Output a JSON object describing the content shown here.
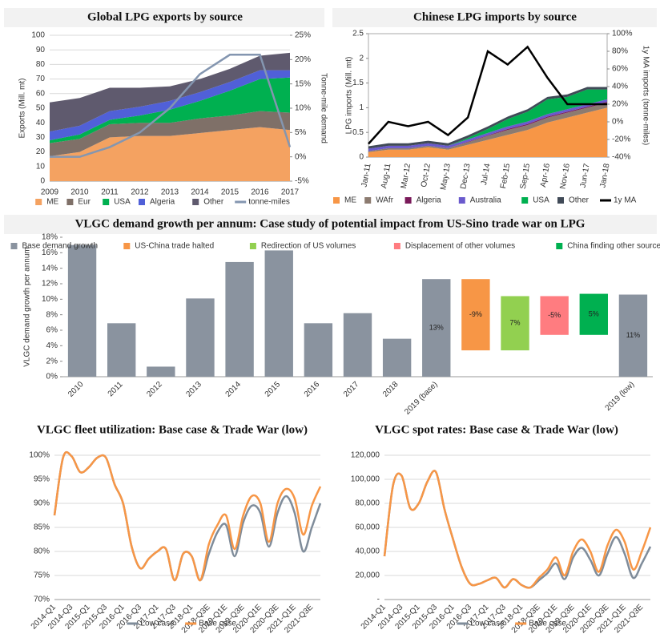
{
  "chart_data": [
    {
      "type": "area",
      "title": "Global LPG exports by source",
      "ylabel": "Exports (Mill. mt)",
      "y2label": "Tonne-mile demand",
      "categories": [
        "2009",
        "2010",
        "2011",
        "2012",
        "2013",
        "2014",
        "2015",
        "2016",
        "2017"
      ],
      "series": [
        {
          "name": "ME",
          "color": "#f4a261",
          "values": [
            17,
            20,
            30,
            31,
            31,
            33,
            35,
            37,
            35
          ]
        },
        {
          "name": "Eur",
          "color": "#7f7068",
          "values": [
            9,
            9,
            9,
            9,
            9,
            10,
            10,
            11,
            12
          ]
        },
        {
          "name": "USA",
          "color": "#00b050",
          "values": [
            2,
            3,
            3,
            5,
            9,
            12,
            17,
            22,
            24
          ]
        },
        {
          "name": "Algeria",
          "color": "#5060d8",
          "values": [
            6,
            6,
            6,
            6,
            6,
            6,
            6,
            6,
            5
          ]
        },
        {
          "name": "Other",
          "color": "#5f5a6e",
          "values": [
            20,
            19,
            16,
            13,
            10,
            9,
            9,
            10,
            12
          ]
        },
        {
          "name": "tonne-miles",
          "color": "#8496b0",
          "axis": "y2",
          "values": [
            0,
            0,
            2,
            5,
            10,
            17,
            21,
            21,
            2
          ]
        }
      ],
      "ylim": [
        0,
        100
      ],
      "yticks": [
        0,
        10,
        20,
        30,
        40,
        50,
        60,
        70,
        80,
        90,
        100
      ],
      "y2lim": [
        -5,
        25
      ],
      "y2ticks": [
        {
          "value": -5,
          "label": "-5%"
        },
        {
          "value": 0,
          "label": "0%"
        },
        {
          "value": 5,
          "label": "5%"
        },
        {
          "value": 10,
          "label": "10%"
        },
        {
          "value": 15,
          "label": "15%"
        },
        {
          "value": 20,
          "label": "20%"
        },
        {
          "value": 25,
          "label": "25%"
        }
      ],
      "grid": true,
      "legend": "bottom"
    },
    {
      "type": "area",
      "title": "Chinese LPG imports by source",
      "ylabel": "LPG imports (Mill. mt)",
      "y2label": "1y MA imports (tonne-miles)",
      "categories": [
        "Jan-11",
        "Aug-11",
        "Mar-12",
        "Oct-12",
        "May-13",
        "Dec-13",
        "Jul-14",
        "Feb-15",
        "Sep-15",
        "Apr-16",
        "Nov-16",
        "Jun-17",
        "Jan-18"
      ],
      "series": [
        {
          "name": "ME",
          "color": "#f79646",
          "values": [
            0.1,
            0.15,
            0.15,
            0.2,
            0.15,
            0.25,
            0.35,
            0.45,
            0.55,
            0.7,
            0.8,
            0.9,
            1.0
          ]
        },
        {
          "name": "WAfr",
          "color": "#8c7b70",
          "values": [
            0.02,
            0.03,
            0.03,
            0.03,
            0.03,
            0.05,
            0.08,
            0.1,
            0.1,
            0.1,
            0.1,
            0.1,
            0.1
          ]
        },
        {
          "name": "Algeria",
          "color": "#7a1a5a",
          "values": [
            0,
            0,
            0,
            0,
            0,
            0.01,
            0.01,
            0.02,
            0.02,
            0.02,
            0.02,
            0.02,
            0.02
          ]
        },
        {
          "name": "Australia",
          "color": "#6a5acd",
          "values": [
            0.05,
            0.05,
            0.05,
            0.05,
            0.05,
            0.05,
            0.05,
            0.05,
            0.05,
            0.05,
            0.05,
            0.05,
            0.05
          ]
        },
        {
          "name": "USA",
          "color": "#00b050",
          "values": [
            0,
            0,
            0,
            0,
            0,
            0.03,
            0.08,
            0.15,
            0.2,
            0.3,
            0.25,
            0.3,
            0.2
          ]
        },
        {
          "name": "Other",
          "color": "#404a57",
          "values": [
            0.05,
            0.05,
            0.05,
            0.05,
            0.05,
            0.05,
            0.05,
            0.05,
            0.05,
            0.05,
            0.05,
            0.05,
            0.05
          ]
        },
        {
          "name": "1y MA",
          "color": "#000000",
          "axis": "y2",
          "values": [
            -25,
            0,
            -5,
            0,
            -15,
            5,
            80,
            65,
            85,
            50,
            20,
            20,
            20
          ]
        }
      ],
      "ylim": [
        0,
        2.5
      ],
      "yticks": [
        0,
        0.5,
        1,
        1.5,
        2,
        2.5
      ],
      "y2lim": [
        -40,
        100
      ],
      "y2ticks": [
        {
          "value": -40,
          "label": "-40%"
        },
        {
          "value": -20,
          "label": "-20%"
        },
        {
          "value": 0,
          "label": "0%"
        },
        {
          "value": 20,
          "label": "20%"
        },
        {
          "value": 40,
          "label": "40%"
        },
        {
          "value": 60,
          "label": "60%"
        },
        {
          "value": 80,
          "label": "80%"
        },
        {
          "value": 100,
          "label": "100%"
        }
      ],
      "grid": false,
      "legend": "bottom"
    },
    {
      "type": "waterfall",
      "title": "VLGC demand growth per annum: Case study of potential impact from US-Sino trade war on LPG",
      "ylabel": "VLGC demand growth per annum",
      "categories": [
        "2010",
        "2011",
        "2012",
        "2013",
        "2014",
        "2015",
        "2016",
        "2017",
        "2018",
        "2019 (base)",
        null,
        null,
        null,
        null,
        "2019 (low)"
      ],
      "series": [
        {
          "name": "Base demand growth",
          "color": "#8a939f",
          "values": [
            17,
            6.9,
            1.3,
            10.1,
            14.8,
            16.3,
            6.9,
            8.2,
            4.9,
            12.6,
            null,
            null,
            null,
            null,
            10.6
          ],
          "value_labels": [
            null,
            null,
            null,
            null,
            null,
            null,
            null,
            null,
            null,
            "13%",
            null,
            null,
            null,
            null,
            "11%"
          ]
        },
        {
          "name": "US-China trade halted",
          "color": "#f79646",
          "values": [
            null,
            null,
            null,
            null,
            null,
            null,
            null,
            null,
            null,
            null,
            -9.2,
            null,
            null,
            null,
            null
          ],
          "value_labels": [
            null,
            null,
            null,
            null,
            null,
            null,
            null,
            null,
            null,
            null,
            "-9%",
            null,
            null,
            null,
            null
          ]
        },
        {
          "name": "Redirection of US volumes",
          "color": "#92d050",
          "values": [
            null,
            null,
            null,
            null,
            null,
            null,
            null,
            null,
            null,
            null,
            null,
            7,
            null,
            null,
            null
          ],
          "value_labels": [
            null,
            null,
            null,
            null,
            null,
            null,
            null,
            null,
            null,
            null,
            null,
            "7%",
            null,
            null,
            null
          ]
        },
        {
          "name": "Displacement of other volumes",
          "color": "#ff7c80",
          "values": [
            null,
            null,
            null,
            null,
            null,
            null,
            null,
            null,
            null,
            null,
            null,
            null,
            -5,
            null,
            null
          ],
          "value_labels": [
            null,
            null,
            null,
            null,
            null,
            null,
            null,
            null,
            null,
            null,
            null,
            null,
            "-5%",
            null,
            null
          ]
        },
        {
          "name": "China finding other sources",
          "color": "#00b050",
          "values": [
            null,
            null,
            null,
            null,
            null,
            null,
            null,
            null,
            null,
            null,
            null,
            null,
            null,
            5.3,
            null
          ],
          "value_labels": [
            null,
            null,
            null,
            null,
            null,
            null,
            null,
            null,
            null,
            null,
            null,
            null,
            null,
            "5%",
            null
          ]
        }
      ],
      "ylim": [
        0,
        18
      ],
      "yticks": [
        {
          "value": 0,
          "label": "0%"
        },
        {
          "value": 2,
          "label": "2%"
        },
        {
          "value": 4,
          "label": "4%"
        },
        {
          "value": 6,
          "label": "6%"
        },
        {
          "value": 8,
          "label": "8%"
        },
        {
          "value": 10,
          "label": "10%"
        },
        {
          "value": 12,
          "label": "12%"
        },
        {
          "value": 14,
          "label": "14%"
        },
        {
          "value": 16,
          "label": "16%"
        },
        {
          "value": 18,
          "label": "18%"
        }
      ],
      "grid": false,
      "legend": "top"
    },
    {
      "type": "line",
      "title": "VLGC fleet utilization: Base case & Trade War (low)",
      "categories": [
        "2014-Q1",
        null,
        "2014-Q3",
        null,
        "2015-Q1",
        null,
        "2015-Q3",
        null,
        "2016-Q1",
        null,
        "2016-Q3",
        null,
        "2017-Q1",
        null,
        "2017-Q3",
        null,
        "2018-Q1",
        null,
        "2018-Q3E",
        null,
        "2019-Q1E",
        null,
        "2019-Q3E",
        null,
        "2020-Q1E",
        null,
        "2020-Q3E",
        null,
        "2021-Q1E",
        null,
        "2021-Q3E",
        null
      ],
      "series": [
        {
          "name": "Low case",
          "color": "#7f8c9a",
          "values": [
            87.5,
            99.5,
            99.8,
            96.5,
            97.5,
            99.5,
            99.5,
            94,
            90,
            81,
            76.5,
            78.5,
            80,
            80.5,
            74,
            79.5,
            79,
            74,
            79.5,
            84,
            85.5,
            79,
            86,
            89.5,
            88,
            81,
            88,
            91.5,
            88,
            80,
            85,
            90
          ]
        },
        {
          "name": "Base case",
          "color": "#f79646",
          "values": [
            87.5,
            99.5,
            99.8,
            96.5,
            97.5,
            99.5,
            99.5,
            94,
            90,
            81,
            76.5,
            78.5,
            80,
            80.5,
            74,
            79.5,
            79,
            74,
            81.5,
            85.5,
            87.5,
            80.5,
            87.5,
            91.5,
            90,
            82,
            90,
            93,
            91,
            83.5,
            89.5,
            93.5
          ]
        }
      ],
      "ylim": [
        70,
        100
      ],
      "yticks": [
        {
          "value": 70,
          "label": "70%"
        },
        {
          "value": 75,
          "label": "75%"
        },
        {
          "value": 80,
          "label": "80%"
        },
        {
          "value": 85,
          "label": "85%"
        },
        {
          "value": 90,
          "label": "90%"
        },
        {
          "value": 95,
          "label": "95%"
        },
        {
          "value": 100,
          "label": "100%"
        }
      ],
      "grid": true,
      "legend": "bottom"
    },
    {
      "type": "line",
      "title": "VLGC spot rates: Base case & Trade War (low)",
      "categories": [
        "2014-Q1",
        null,
        "2014-Q3",
        null,
        "2015-Q1",
        null,
        "2015-Q3",
        null,
        "2016-Q1",
        null,
        "2016-Q3",
        null,
        "2017-Q1",
        null,
        "2017-Q3",
        null,
        "2018-Q1",
        null,
        "2018-Q3E",
        null,
        "2019-Q1E",
        null,
        "2019-Q3E",
        null,
        "2020-Q1E",
        null,
        "2020-Q3E",
        null,
        "2021-Q1E",
        null,
        "2021-Q3E",
        null
      ],
      "series": [
        {
          "name": "Low case",
          "color": "#7f8c9a",
          "values": [
            36000,
            95000,
            103000,
            76000,
            80000,
            98000,
            106000,
            75000,
            50000,
            27000,
            13000,
            13000,
            16000,
            18000,
            10000,
            17000,
            12000,
            10000,
            16000,
            22000,
            30000,
            17000,
            35000,
            43000,
            33000,
            20000,
            38000,
            52000,
            38000,
            18000,
            30000,
            44000
          ]
        },
        {
          "name": "Base case",
          "color": "#f79646",
          "values": [
            36000,
            95000,
            103000,
            76000,
            80000,
            98000,
            106000,
            75000,
            50000,
            27000,
            13000,
            13000,
            16000,
            18000,
            10000,
            17000,
            12000,
            10000,
            18000,
            25000,
            35000,
            20000,
            40000,
            50000,
            40000,
            23000,
            45000,
            58000,
            48000,
            25000,
            40000,
            60000
          ]
        }
      ],
      "ylim": [
        0,
        120000
      ],
      "yticks": [
        {
          "value": 0,
          "label": "-"
        },
        {
          "value": 20000,
          "label": "20,000"
        },
        {
          "value": 40000,
          "label": "40,000"
        },
        {
          "value": 60000,
          "label": "60,000"
        },
        {
          "value": 80000,
          "label": "80,000"
        },
        {
          "value": 100000,
          "label": "100,000"
        },
        {
          "value": 120000,
          "label": "120,000"
        }
      ],
      "grid": true,
      "legend": "bottom"
    }
  ]
}
